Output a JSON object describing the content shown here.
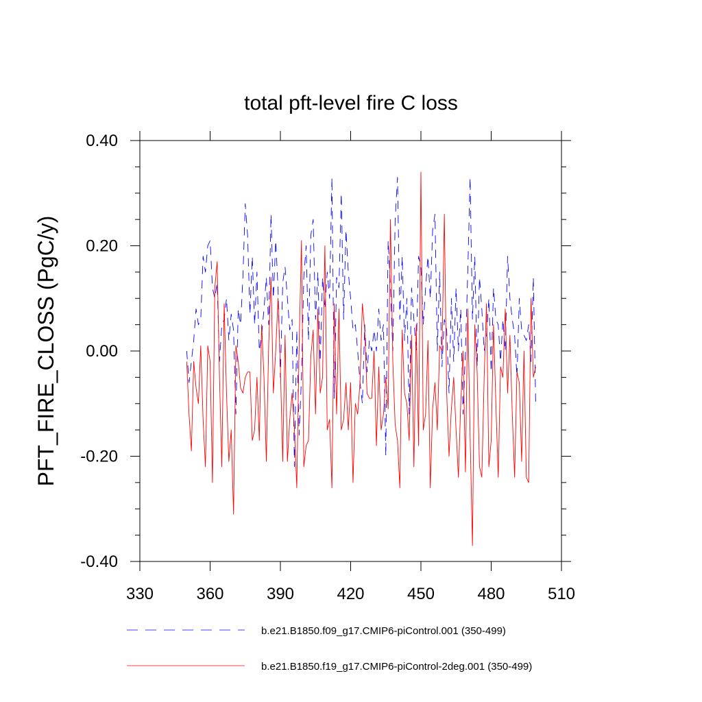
{
  "chart_data": {
    "type": "line",
    "title": "total pft-level fire C loss",
    "xlabel": "",
    "ylabel": "PFT_FIRE_CLOSS  (PgC/y)",
    "xlim": [
      330,
      510
    ],
    "ylim": [
      -0.4,
      0.4
    ],
    "xticks": [
      330,
      360,
      390,
      420,
      450,
      480,
      510
    ],
    "xtick_labels": [
      "330",
      "360",
      "390",
      "420",
      "450",
      "480",
      "510"
    ],
    "yticks": [
      -0.4,
      -0.2,
      0.0,
      0.2,
      0.4
    ],
    "ytick_labels": [
      "-0.40",
      "-0.20",
      "0.00",
      "0.20",
      "0.40"
    ],
    "grid": false,
    "legend_position": "bottom",
    "series": [
      {
        "name": "b.e21.B1850.f09_g17.CMIP6-piControl.001 (350-499)",
        "color": "#0000ff",
        "style": "dashed",
        "x_start": 350,
        "values": [
          0.0,
          -0.06,
          -0.02,
          0.02,
          0.08,
          0.05,
          0.06,
          0.18,
          0.15,
          0.2,
          0.21,
          0.12,
          0.1,
          0.13,
          -0.02,
          0.05,
          0.06,
          0.1,
          0.02,
          0.07,
          0.04,
          -0.12,
          0.08,
          0.05,
          0.14,
          0.28,
          0.22,
          0.07,
          0.18,
          0.05,
          0.15,
          0.0,
          0.03,
          0.08,
          0.14,
          0.05,
          0.26,
          0.1,
          0.21,
          0.12,
          -0.05,
          0.13,
          0.16,
          0.1,
          0.04,
          0.06,
          -0.22,
          0.04,
          -0.16,
          -0.05,
          0.14,
          0.2,
          0.02,
          0.22,
          0.25,
          0.06,
          0.15,
          -0.02,
          0.14,
          0.08,
          0.15,
          0.1,
          0.33,
          -0.09,
          0.14,
          0.12,
          0.3,
          0.06,
          0.23,
          0.15,
          0.1,
          0.04,
          0.05,
          0.0,
          -0.06,
          -0.1,
          0.05,
          -0.04,
          0.02,
          0.0,
          0.04,
          0.0,
          0.08,
          0.02,
          0.05,
          -0.2,
          0.21,
          0.12,
          0.0,
          0.25,
          0.33,
          0.06,
          0.18,
          0.02,
          0.1,
          -0.12,
          0.12,
          0.06,
          0.0,
          0.18,
          0.16,
          0.05,
          0.12,
          0.18,
          0.1,
          0.23,
          0.26,
          0.0,
          0.15,
          -0.03,
          0.06,
          0.04,
          -0.08,
          0.1,
          -0.02,
          0.12,
          0.0,
          0.08,
          -0.12,
          0.0,
          0.15,
          0.33,
          0.06,
          0.18,
          -0.03,
          0.14,
          0.08,
          0.0,
          0.03,
          0.1,
          -0.04,
          0.12,
          0.06,
          0.05,
          -0.02,
          0.06,
          0.0,
          0.18,
          0.1,
          0.06,
          0.03,
          -0.05,
          0.1,
          0.04,
          0.03,
          0.02,
          0.05,
          -0.02,
          0.14,
          -0.1
        ]
      },
      {
        "name": "b.e21.B1850.f19_g17.CMIP6-piControl-2deg.001 (350-499)",
        "color": "#ff0000",
        "style": "solid",
        "x_start": 350,
        "values": [
          -0.02,
          -0.12,
          -0.19,
          -0.02,
          -0.07,
          -0.1,
          0.01,
          -0.13,
          -0.22,
          0.01,
          -0.02,
          -0.25,
          0.12,
          0.17,
          -0.05,
          -0.22,
          0.09,
          -0.08,
          -0.21,
          -0.15,
          -0.31,
          0.01,
          -0.02,
          -0.07,
          -0.08,
          -0.05,
          -0.04,
          -0.04,
          -0.17,
          -0.15,
          -0.05,
          -0.17,
          0.05,
          -0.05,
          -0.21,
          0.01,
          0.14,
          -0.08,
          0.0,
          0.1,
          -0.03,
          -0.21,
          0.03,
          -0.21,
          -0.13,
          -0.08,
          -0.15,
          -0.26,
          0.01,
          0.21,
          -0.22,
          -0.18,
          -0.17,
          -0.01,
          0.04,
          -0.12,
          0.08,
          -0.08,
          -0.05,
          0.2,
          -0.15,
          -0.13,
          -0.26,
          0.09,
          -0.12,
          0.08,
          -0.15,
          -0.13,
          -0.06,
          -0.15,
          -0.06,
          -0.25,
          -0.1,
          -0.12,
          -0.06,
          0.09,
          0.04,
          -0.08,
          -0.09,
          -0.09,
          0.0,
          -0.18,
          -0.03,
          -0.15,
          -0.12,
          -0.05,
          -0.11,
          0.25,
          -0.02,
          -0.14,
          -0.17,
          -0.26,
          0.04,
          -0.08,
          -0.1,
          -0.17,
          0.03,
          -0.22,
          0.05,
          -0.18,
          0.34,
          -0.15,
          -0.12,
          0.02,
          -0.26,
          -0.11,
          -0.06,
          -0.15,
          0.01,
          0.0,
          0.26,
          -0.08,
          -0.2,
          -0.11,
          -0.05,
          -0.15,
          -0.24,
          -0.1,
          0.0,
          -0.23,
          0.08,
          -0.16,
          -0.37,
          0.05,
          -0.04,
          -0.22,
          -0.24,
          -0.05,
          0.09,
          -0.22,
          -0.17,
          0.05,
          -0.1,
          -0.24,
          -0.03,
          -0.05,
          0.08,
          -0.08,
          0.03,
          -0.12,
          -0.24,
          -0.04,
          -0.06,
          -0.21,
          0.0,
          -0.24,
          -0.25,
          0.1,
          -0.05,
          -0.03
        ]
      }
    ]
  }
}
